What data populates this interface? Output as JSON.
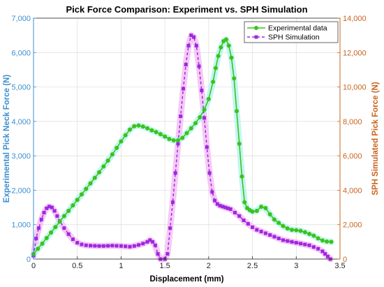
{
  "chart_data": {
    "type": "line",
    "title": "Pick Force Comparison: Experiment vs. SPH Simulation",
    "xlabel": "Displacement (mm)",
    "ylabel_left": "Experimental Pick Neck Force (N)",
    "ylabel_right": "SPH Simulated Pick Force (N)",
    "xlim": [
      0,
      3.5
    ],
    "ylim_left": [
      0,
      7000
    ],
    "ylim_right": [
      0,
      14000
    ],
    "x_ticks": [
      "0",
      "0.5",
      "1",
      "1.5",
      "2",
      "2.5",
      "3",
      "3.5"
    ],
    "x_tick_values": [
      0,
      0.5,
      1,
      1.5,
      2,
      2.5,
      3,
      3.5
    ],
    "y_left_ticks": [
      "0",
      "1,000",
      "2,000",
      "3,000",
      "4,000",
      "5,000",
      "6,000",
      "7,000"
    ],
    "y_left_tick_values": [
      0,
      1000,
      2000,
      3000,
      4000,
      5000,
      6000,
      7000
    ],
    "y_right_ticks": [
      "0",
      "2,000",
      "4,000",
      "6,000",
      "8,000",
      "10,000",
      "12,000",
      "14,000"
    ],
    "y_right_tick_values": [
      0,
      2000,
      4000,
      6000,
      8000,
      10000,
      12000,
      14000
    ],
    "grid": true,
    "legend_position": "top-right",
    "colors": {
      "left_axis": "#3a8fd0",
      "right_axis": "#c8641e",
      "experimental": "#3cc21a",
      "simulation": "#9e28e0",
      "glow_experimental": "#b8f5ef",
      "glow_simulation": "#f5c0f5"
    },
    "series": [
      {
        "name": "Experimental data",
        "axis": "left",
        "style": "solid-circle",
        "x": [
          0,
          0.05,
          0.1,
          0.15,
          0.2,
          0.25,
          0.3,
          0.35,
          0.4,
          0.45,
          0.5,
          0.55,
          0.6,
          0.65,
          0.7,
          0.75,
          0.8,
          0.85,
          0.9,
          0.95,
          1.0,
          1.05,
          1.1,
          1.15,
          1.2,
          1.25,
          1.3,
          1.35,
          1.4,
          1.45,
          1.5,
          1.55,
          1.6,
          1.65,
          1.7,
          1.75,
          1.8,
          1.85,
          1.9,
          1.95,
          2.0,
          2.05,
          2.08,
          2.11,
          2.14,
          2.17,
          2.2,
          2.23,
          2.26,
          2.29,
          2.32,
          2.35,
          2.38,
          2.41,
          2.44,
          2.47,
          2.5,
          2.55,
          2.6,
          2.65,
          2.7,
          2.75,
          2.8,
          2.85,
          2.9,
          2.95,
          3.0,
          3.05,
          3.1,
          3.15,
          3.2,
          3.25,
          3.3,
          3.35,
          3.4
        ],
        "y": [
          150,
          300,
          450,
          610,
          770,
          930,
          1090,
          1250,
          1400,
          1560,
          1720,
          1880,
          2040,
          2200,
          2360,
          2520,
          2690,
          2860,
          3040,
          3230,
          3420,
          3600,
          3760,
          3860,
          3880,
          3850,
          3800,
          3740,
          3690,
          3630,
          3560,
          3490,
          3450,
          3450,
          3520,
          3660,
          3800,
          3950,
          4120,
          4340,
          4650,
          5150,
          5550,
          5900,
          6150,
          6330,
          6380,
          6200,
          5850,
          5250,
          4300,
          3350,
          2400,
          1650,
          1480,
          1420,
          1380,
          1400,
          1520,
          1480,
          1300,
          1150,
          1050,
          960,
          890,
          850,
          840,
          820,
          780,
          730,
          680,
          600,
          540,
          510,
          500
        ]
      },
      {
        "name": "SPH Simulation",
        "axis": "right",
        "style": "dashed-square",
        "x": [
          0,
          0.03,
          0.06,
          0.09,
          0.12,
          0.15,
          0.18,
          0.21,
          0.24,
          0.27,
          0.3,
          0.35,
          0.4,
          0.45,
          0.5,
          0.55,
          0.6,
          0.65,
          0.7,
          0.75,
          0.8,
          0.85,
          0.9,
          0.95,
          1.0,
          1.05,
          1.1,
          1.15,
          1.2,
          1.25,
          1.3,
          1.33,
          1.36,
          1.39,
          1.42,
          1.45,
          1.5,
          1.53,
          1.56,
          1.59,
          1.62,
          1.65,
          1.68,
          1.71,
          1.74,
          1.77,
          1.8,
          1.83,
          1.86,
          1.89,
          1.92,
          1.95,
          1.98,
          2.01,
          2.04,
          2.07,
          2.1,
          2.13,
          2.16,
          2.19,
          2.22,
          2.25,
          2.3,
          2.35,
          2.4,
          2.45,
          2.5,
          2.55,
          2.6,
          2.65,
          2.7,
          2.75,
          2.8,
          2.85,
          2.9,
          2.95,
          3.0,
          3.05,
          3.1,
          3.15,
          3.2,
          3.25,
          3.3,
          3.33,
          3.36,
          3.39
        ],
        "y": [
          200,
          1200,
          1800,
          2300,
          2700,
          2950,
          3050,
          3000,
          2800,
          2500,
          2200,
          1800,
          1450,
          1150,
          950,
          850,
          800,
          780,
          770,
          760,
          760,
          770,
          780,
          770,
          760,
          740,
          720,
          760,
          820,
          900,
          1000,
          1100,
          1000,
          800,
          300,
          0,
          0,
          300,
          1800,
          3300,
          5000,
          6700,
          8300,
          9900,
          11300,
          12400,
          13000,
          12900,
          12400,
          11200,
          9800,
          8200,
          6500,
          5000,
          3900,
          3400,
          3200,
          3100,
          3050,
          3000,
          2950,
          2900,
          2700,
          2500,
          2250,
          2050,
          1850,
          1700,
          1600,
          1500,
          1400,
          1300,
          1200,
          1100,
          1050,
          1000,
          950,
          900,
          850,
          800,
          700,
          600,
          450,
          300,
          150,
          0
        ]
      }
    ]
  }
}
